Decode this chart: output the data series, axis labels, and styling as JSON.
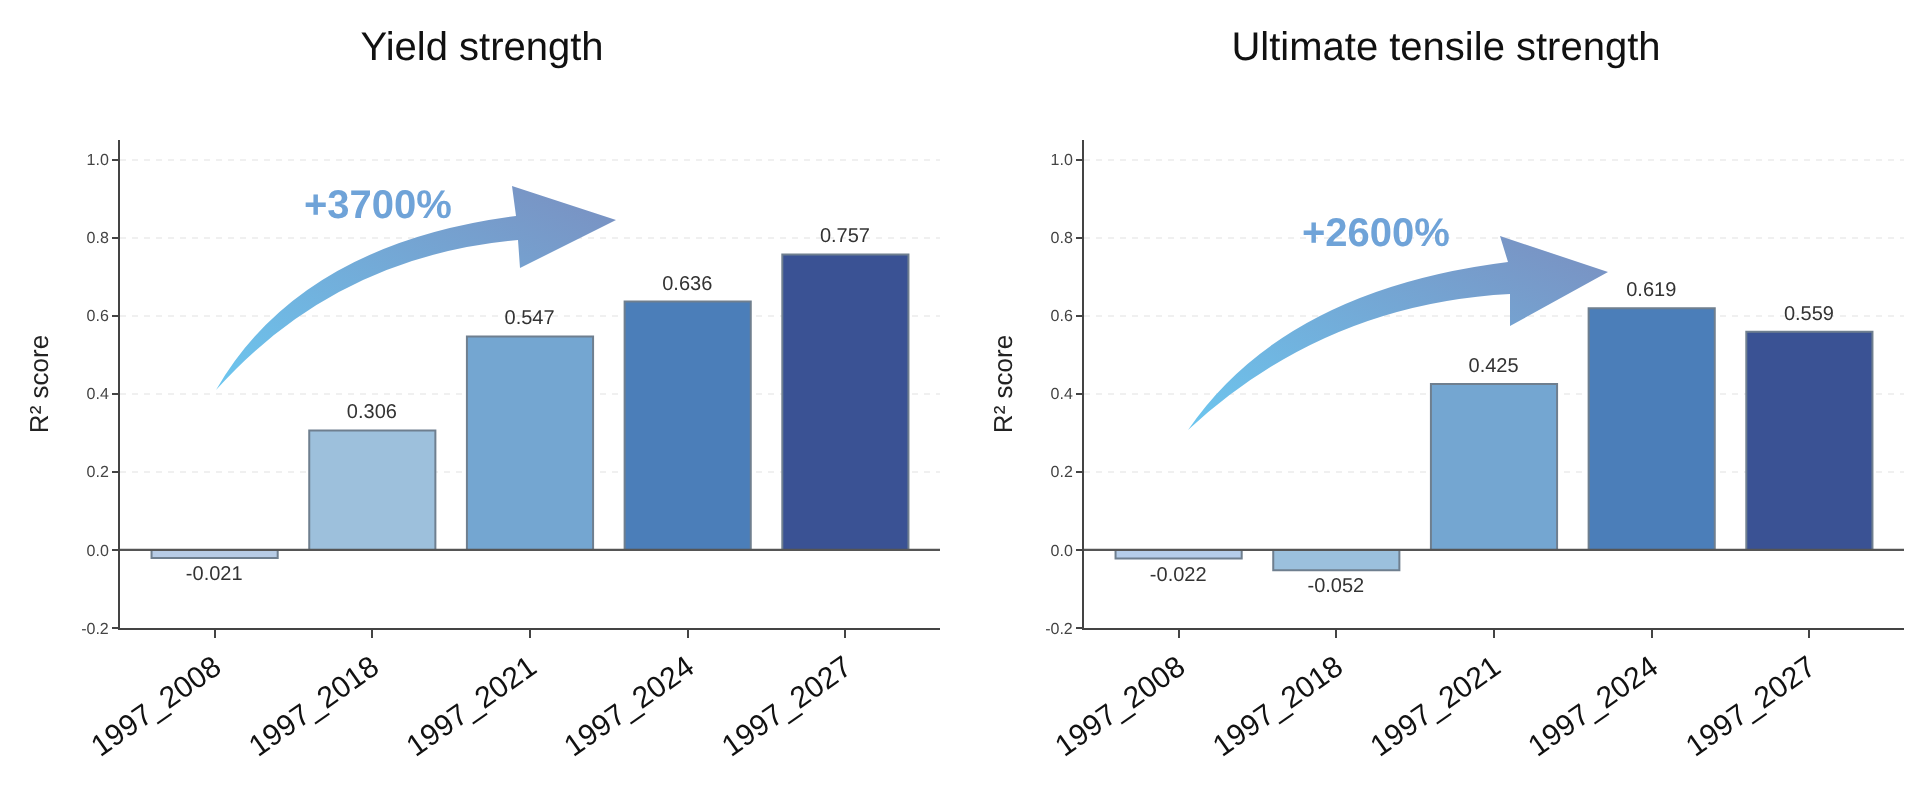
{
  "chart_data": [
    {
      "type": "bar",
      "title": "Yield strength",
      "ylabel": "R² score",
      "categories": [
        "1997_2008",
        "1997_2018",
        "1997_2021",
        "1997_2024",
        "1997_2027"
      ],
      "values": [
        -0.021,
        0.306,
        0.547,
        0.636,
        0.757
      ],
      "colors": [
        "#b7cce6",
        "#9dc0dc",
        "#74a6d1",
        "#4b7eb9",
        "#3a5294"
      ],
      "data_labels": true,
      "ylim": [
        -0.2,
        1.05
      ],
      "yticks": [
        {
          "value": -0.2,
          "label": "-0.2"
        },
        {
          "value": 0,
          "label": "0.0"
        },
        {
          "value": 0.2,
          "label": "0.2"
        },
        {
          "value": 0.4,
          "label": "0.4"
        },
        {
          "value": 0.6,
          "label": "0.6"
        },
        {
          "value": 0.8,
          "label": "0.8"
        },
        {
          "value": 1,
          "label": "1.0"
        }
      ],
      "grid": "y",
      "ref_lines": [
        {
          "axis": "y",
          "value": 0
        }
      ],
      "annotations": [
        "+3700%"
      ]
    },
    {
      "type": "bar",
      "title": "Ultimate tensile strength",
      "ylabel": "R² score",
      "categories": [
        "1997_2008",
        "1997_2018",
        "1997_2021",
        "1997_2024",
        "1997_2027"
      ],
      "values": [
        -0.022,
        -0.052,
        0.425,
        0.619,
        0.559
      ],
      "colors": [
        "#b5cdea",
        "#9bc0dd",
        "#74a6d1",
        "#4b7eb9",
        "#3a5294"
      ],
      "data_labels": true,
      "ylim": [
        -0.2,
        1.05
      ],
      "yticks": [
        {
          "value": -0.2,
          "label": "-0.2"
        },
        {
          "value": 0,
          "label": "0.0"
        },
        {
          "value": 0.2,
          "label": "0.2"
        },
        {
          "value": 0.4,
          "label": "0.4"
        },
        {
          "value": 0.6,
          "label": "0.6"
        },
        {
          "value": 0.8,
          "label": "0.8"
        },
        {
          "value": 1,
          "label": "1.0"
        }
      ],
      "grid": "y",
      "ref_lines": [
        {
          "axis": "y",
          "value": 0
        }
      ],
      "annotations": [
        "+2600%"
      ]
    }
  ]
}
